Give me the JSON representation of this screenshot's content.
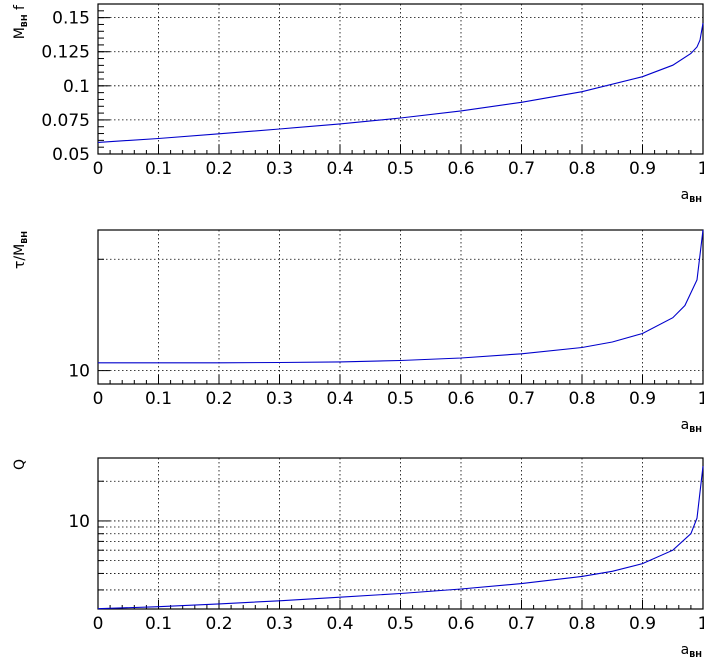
{
  "colors": {
    "curve": "#0000cc",
    "frame": "#000000",
    "grid": "#000000"
  },
  "chart_data": [
    {
      "type": "line",
      "ylabel": {
        "main": "M",
        "sub": "BH",
        "suffix": " f"
      },
      "xlabel": {
        "main": "a",
        "sub": "BH"
      },
      "x_ticks": [
        "0",
        "0.1",
        "0.2",
        "0.3",
        "0.4",
        "0.5",
        "0.6",
        "0.7",
        "0.8",
        "0.9",
        "1"
      ],
      "y_ticks": [
        "0.05",
        "0.075",
        "0.1",
        "0.125",
        "0.15"
      ],
      "xlim": [
        0,
        1
      ],
      "ylim": [
        0.05,
        0.16
      ],
      "yscale": "linear",
      "grid": true,
      "series": [
        {
          "x": [
            0,
            0.1,
            0.2,
            0.3,
            0.4,
            0.5,
            0.6,
            0.7,
            0.8,
            0.9,
            0.95,
            0.98,
            0.99,
            0.995,
            1.0
          ],
          "y": [
            0.0585,
            0.0614,
            0.0648,
            0.0683,
            0.0721,
            0.0764,
            0.0816,
            0.0879,
            0.0957,
            0.1067,
            0.1151,
            0.1237,
            0.1285,
            0.1335,
            0.146
          ]
        }
      ]
    },
    {
      "type": "line",
      "ylabel": {
        "main": "τ/M",
        "sub": "BH",
        "suffix": ""
      },
      "xlabel": {
        "main": "a",
        "sub": "BH"
      },
      "x_ticks": [
        "0",
        "0.1",
        "0.2",
        "0.3",
        "0.4",
        "0.5",
        "0.6",
        "0.7",
        "0.8",
        "0.9",
        "1"
      ],
      "y_ticks": [
        "10"
      ],
      "xlim": [
        0,
        1
      ],
      "ylim": [
        9.2,
        24
      ],
      "yscale": "log",
      "grid": true,
      "series": [
        {
          "x": [
            0,
            0.1,
            0.2,
            0.3,
            0.4,
            0.5,
            0.6,
            0.7,
            0.8,
            0.85,
            0.9,
            0.95,
            0.97,
            0.99,
            1.0
          ],
          "y": [
            10.5,
            10.5,
            10.5,
            10.52,
            10.56,
            10.65,
            10.82,
            11.1,
            11.55,
            11.95,
            12.6,
            13.9,
            15.0,
            17.6,
            24
          ]
        }
      ]
    },
    {
      "type": "line",
      "ylabel": {
        "main": "Q",
        "sub": "",
        "suffix": ""
      },
      "xlabel": {
        "main": "a",
        "sub": "BH"
      },
      "x_ticks": [
        "0",
        "0.1",
        "0.2",
        "0.3",
        "0.4",
        "0.5",
        "0.6",
        "0.7",
        "0.8",
        "0.9",
        "1"
      ],
      "y_ticks": [
        "10"
      ],
      "xlim": [
        0,
        1
      ],
      "ylim": [
        2.15,
        30
      ],
      "yscale": "log",
      "grid": true,
      "series": [
        {
          "x": [
            0,
            0.1,
            0.2,
            0.3,
            0.4,
            0.5,
            0.6,
            0.7,
            0.8,
            0.85,
            0.9,
            0.95,
            0.98,
            0.99,
            1.0
          ],
          "y": [
            2.16,
            2.24,
            2.35,
            2.48,
            2.64,
            2.82,
            3.05,
            3.35,
            3.8,
            4.15,
            4.75,
            6.0,
            8.0,
            10.5,
            26
          ]
        }
      ]
    }
  ]
}
